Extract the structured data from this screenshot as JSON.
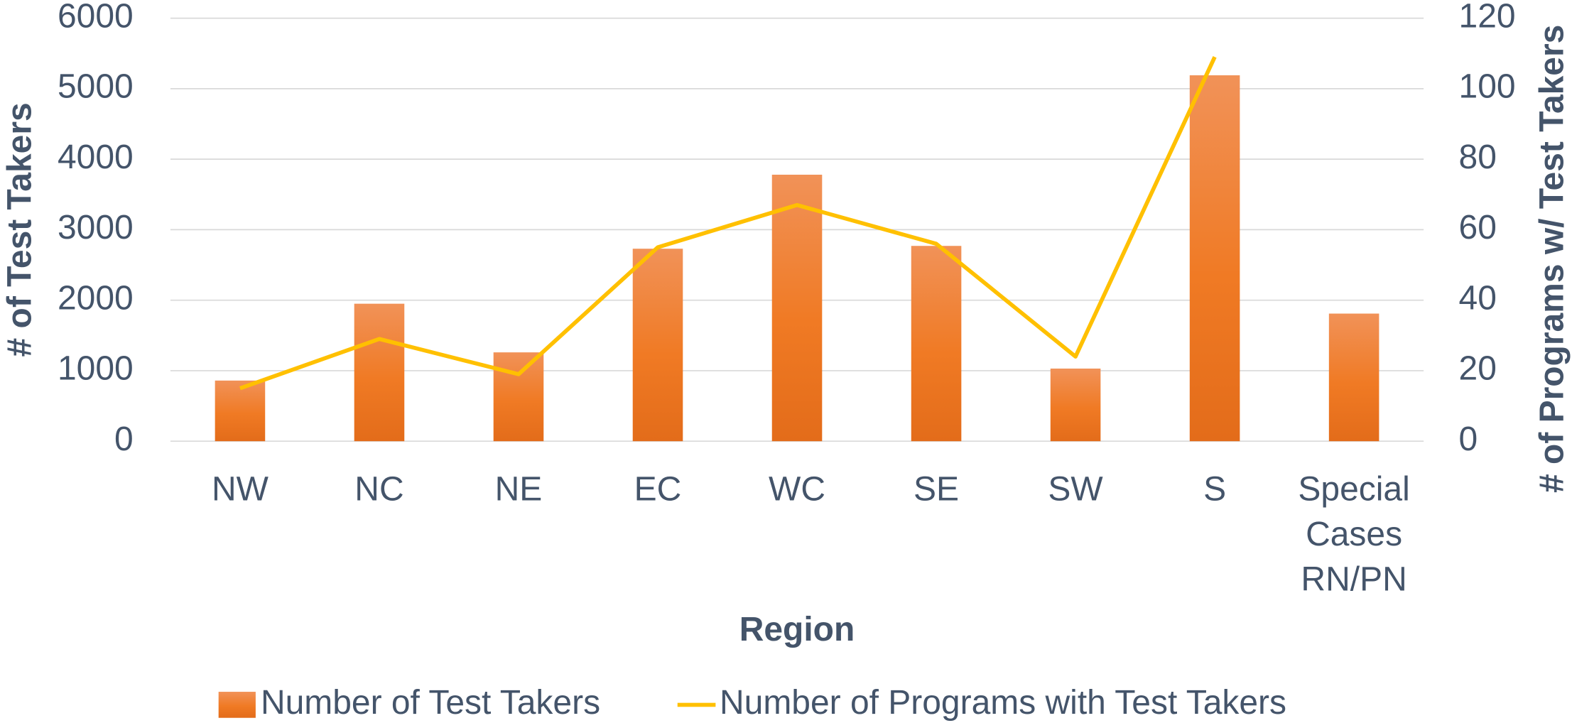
{
  "chart_data": {
    "type": "bar",
    "x_label": "Region",
    "y_label": "# of Test Takers",
    "y2_label": "# of Programs w/ Test Takers",
    "categories": [
      "NW",
      "NC",
      "NE",
      "EC",
      "WC",
      "SE",
      "SW",
      "S",
      "Special Cases RN/PN"
    ],
    "series": [
      {
        "name": "Number of Test Takers",
        "type": "bar",
        "color": "#ed7d31",
        "values": [
          860,
          1950,
          1260,
          2730,
          3780,
          2770,
          1030,
          5190,
          1810
        ]
      },
      {
        "name": "Number of Programs with Test Takers",
        "type": "line",
        "color": "#ffc000",
        "axis": "y2",
        "values": [
          15,
          29,
          19,
          55,
          67,
          56,
          24,
          109,
          null
        ]
      }
    ],
    "ylim": [
      0,
      6000
    ],
    "yticks": [
      0,
      1000,
      2000,
      3000,
      4000,
      5000,
      6000
    ],
    "y2lim": [
      0,
      120
    ],
    "y2ticks": [
      0,
      20,
      40,
      60,
      80,
      100,
      120
    ],
    "grid": true,
    "legend": "bottom"
  }
}
